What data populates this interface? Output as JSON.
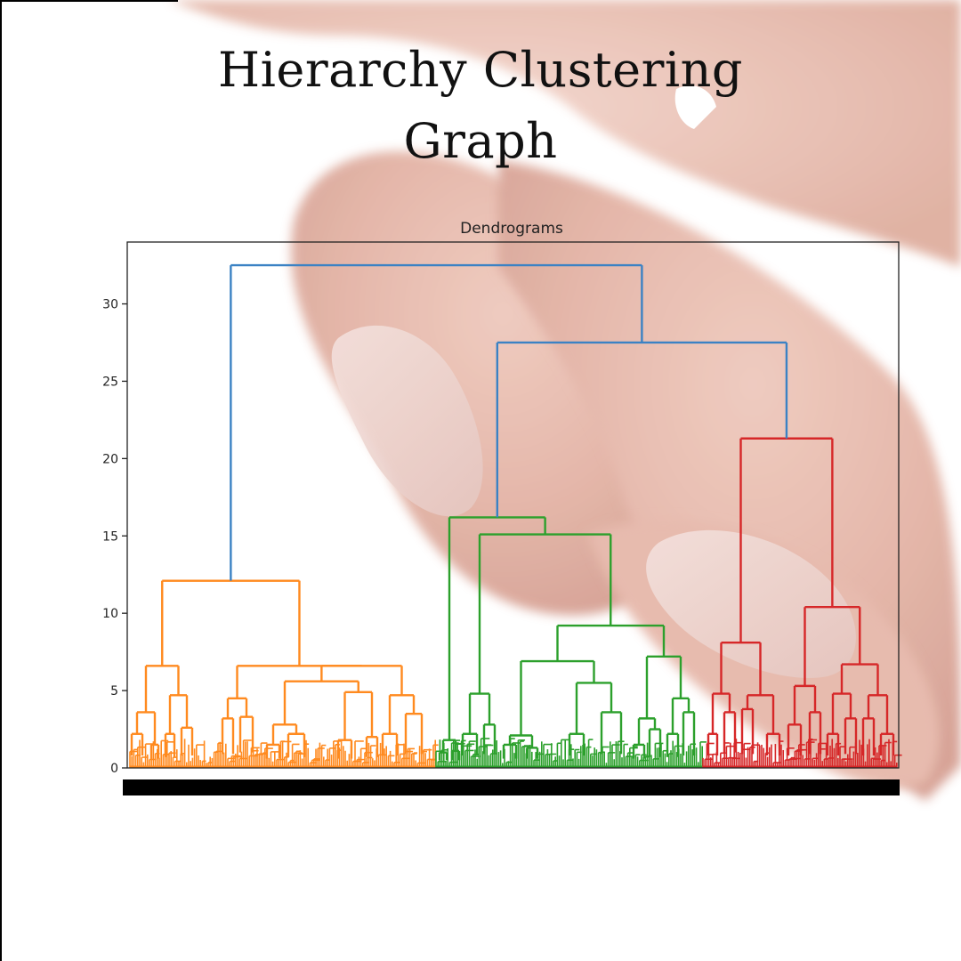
{
  "poster": {
    "title_line_1": "Hierarchy Clustering",
    "title_line_2": "Graph"
  },
  "background": {
    "image_icon": "hand-fingers-photo-icon"
  },
  "chart_data": {
    "type": "dendrogram",
    "title": "Dendrograms",
    "xlabel": "",
    "ylabel": "",
    "ylim": [
      0,
      34
    ],
    "yticks": [
      0,
      5,
      10,
      15,
      20,
      25,
      30
    ],
    "grid": false,
    "legend": "none",
    "leaf_labels": "dense illegible leaf labels (black band)",
    "colors": {
      "top_links": "#3b82c4",
      "cluster_1": "#ff8a1f",
      "cluster_2": "#2ca02c",
      "cluster_3": "#d62728"
    },
    "top_merges": [
      {
        "height": 32.5,
        "joins": [
          "cluster_1",
          "cluster_2+3"
        ]
      },
      {
        "height": 27.5,
        "joins": [
          "cluster_2",
          "cluster_3"
        ]
      }
    ],
    "clusters": [
      {
        "id": "cluster_1",
        "color": "orange",
        "top_height": 12.1,
        "sub_merges": [
          6.6,
          6.6,
          5.6,
          4.9,
          4.7,
          4.5
        ]
      },
      {
        "id": "cluster_2",
        "color": "green",
        "top_height": 16.2,
        "sub_merges": [
          15.1,
          9.2,
          7.2,
          6.9,
          5.5,
          4.8
        ]
      },
      {
        "id": "cluster_3",
        "color": "red",
        "top_height": 21.3,
        "sub_merges": [
          10.4,
          8.1,
          6.7,
          4.8,
          4.7,
          3.8
        ]
      }
    ]
  }
}
